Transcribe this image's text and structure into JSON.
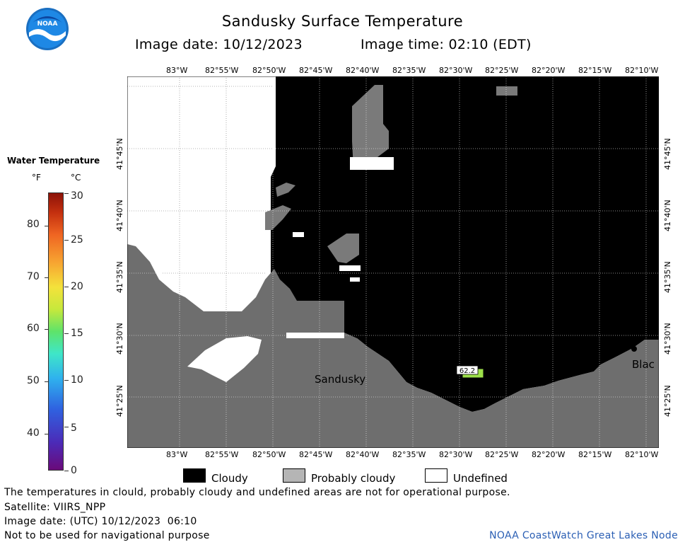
{
  "header": {
    "title": "Sandusky Surface Temperature",
    "image_date_label": "Image date: 10/12/2023",
    "image_time_label": "Image time: 02:10 (EDT)"
  },
  "logo": {
    "text": "NOAA"
  },
  "map": {
    "lon_ticks": [
      "83°W",
      "82°55'W",
      "82°50'W",
      "82°45'W",
      "82°40'W",
      "82°35'W",
      "82°30'W",
      "82°25'W",
      "82°20'W",
      "82°15'W",
      "82°10'W"
    ],
    "lat_ticks": [
      "41°45'N",
      "41°40'N",
      "41°35'N",
      "41°30'N",
      "41°25'N"
    ],
    "place_labels": {
      "sandusky": "Sandusky",
      "black_river": "Blac"
    },
    "buoy_value": "62.2",
    "colors": {
      "land": "#6e6e6e",
      "cloudy": "#000000",
      "probably_cloudy": "#7a7a7a",
      "undefined": "#ffffff",
      "buoy": "#9de04a"
    }
  },
  "temperature_legend": {
    "title": "Water Temperature",
    "unit_f": "°F",
    "unit_c": "°C",
    "f_labels": [
      "80",
      "70",
      "60",
      "50",
      "40"
    ],
    "c_labels": [
      "30",
      "25",
      "20",
      "15",
      "10",
      "5",
      "0"
    ]
  },
  "mask_legend": {
    "cloudy": "Cloudy",
    "probably_cloudy": "Probably cloudy",
    "undefined": "Undefined"
  },
  "footer": {
    "line1": "The temperatures in clould, probably cloudy and undefined areas are not for operational purpose.",
    "line2": "Satellite: VIIRS_NPP",
    "line3": "Image date: (UTC) 10/12/2023  06:10",
    "line4": "Not to be used for navigational purpose",
    "credit": "NOAA CoastWatch Great Lakes Node"
  }
}
